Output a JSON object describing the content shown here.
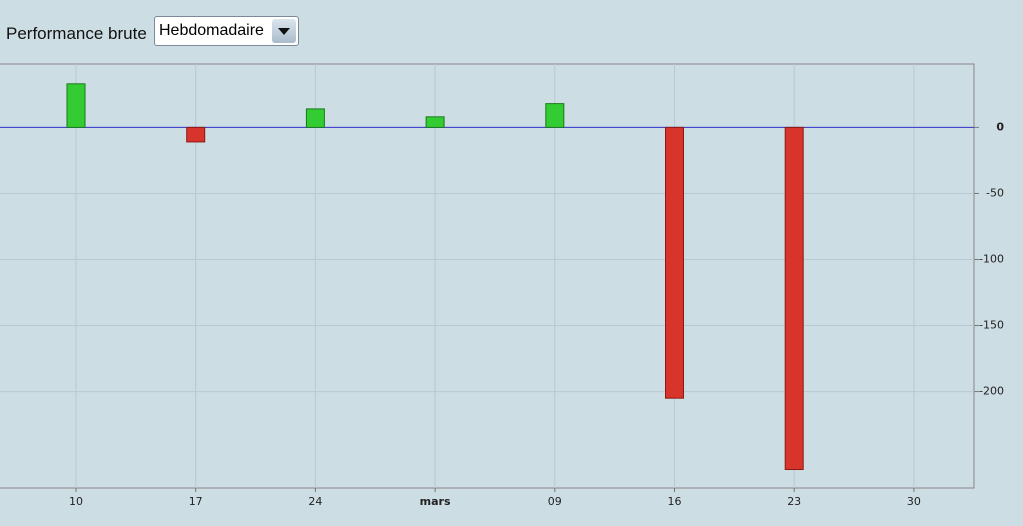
{
  "controls": {
    "label": "Performance brute",
    "dropdown": "Hebdomadaire"
  },
  "chart_data": {
    "type": "bar",
    "categories": [
      "10",
      "17",
      "24",
      "mars",
      "09",
      "16",
      "23",
      "30"
    ],
    "values": [
      33,
      -11,
      14,
      8,
      18,
      -205,
      -259,
      null
    ],
    "positive_color": "#33cc33",
    "negative_color": "#d9342b",
    "baseline_color": "#3333cc",
    "ylim": [
      -273,
      48
    ],
    "yticks": [
      0,
      -50,
      -100,
      -150,
      -200
    ],
    "grid": true
  }
}
